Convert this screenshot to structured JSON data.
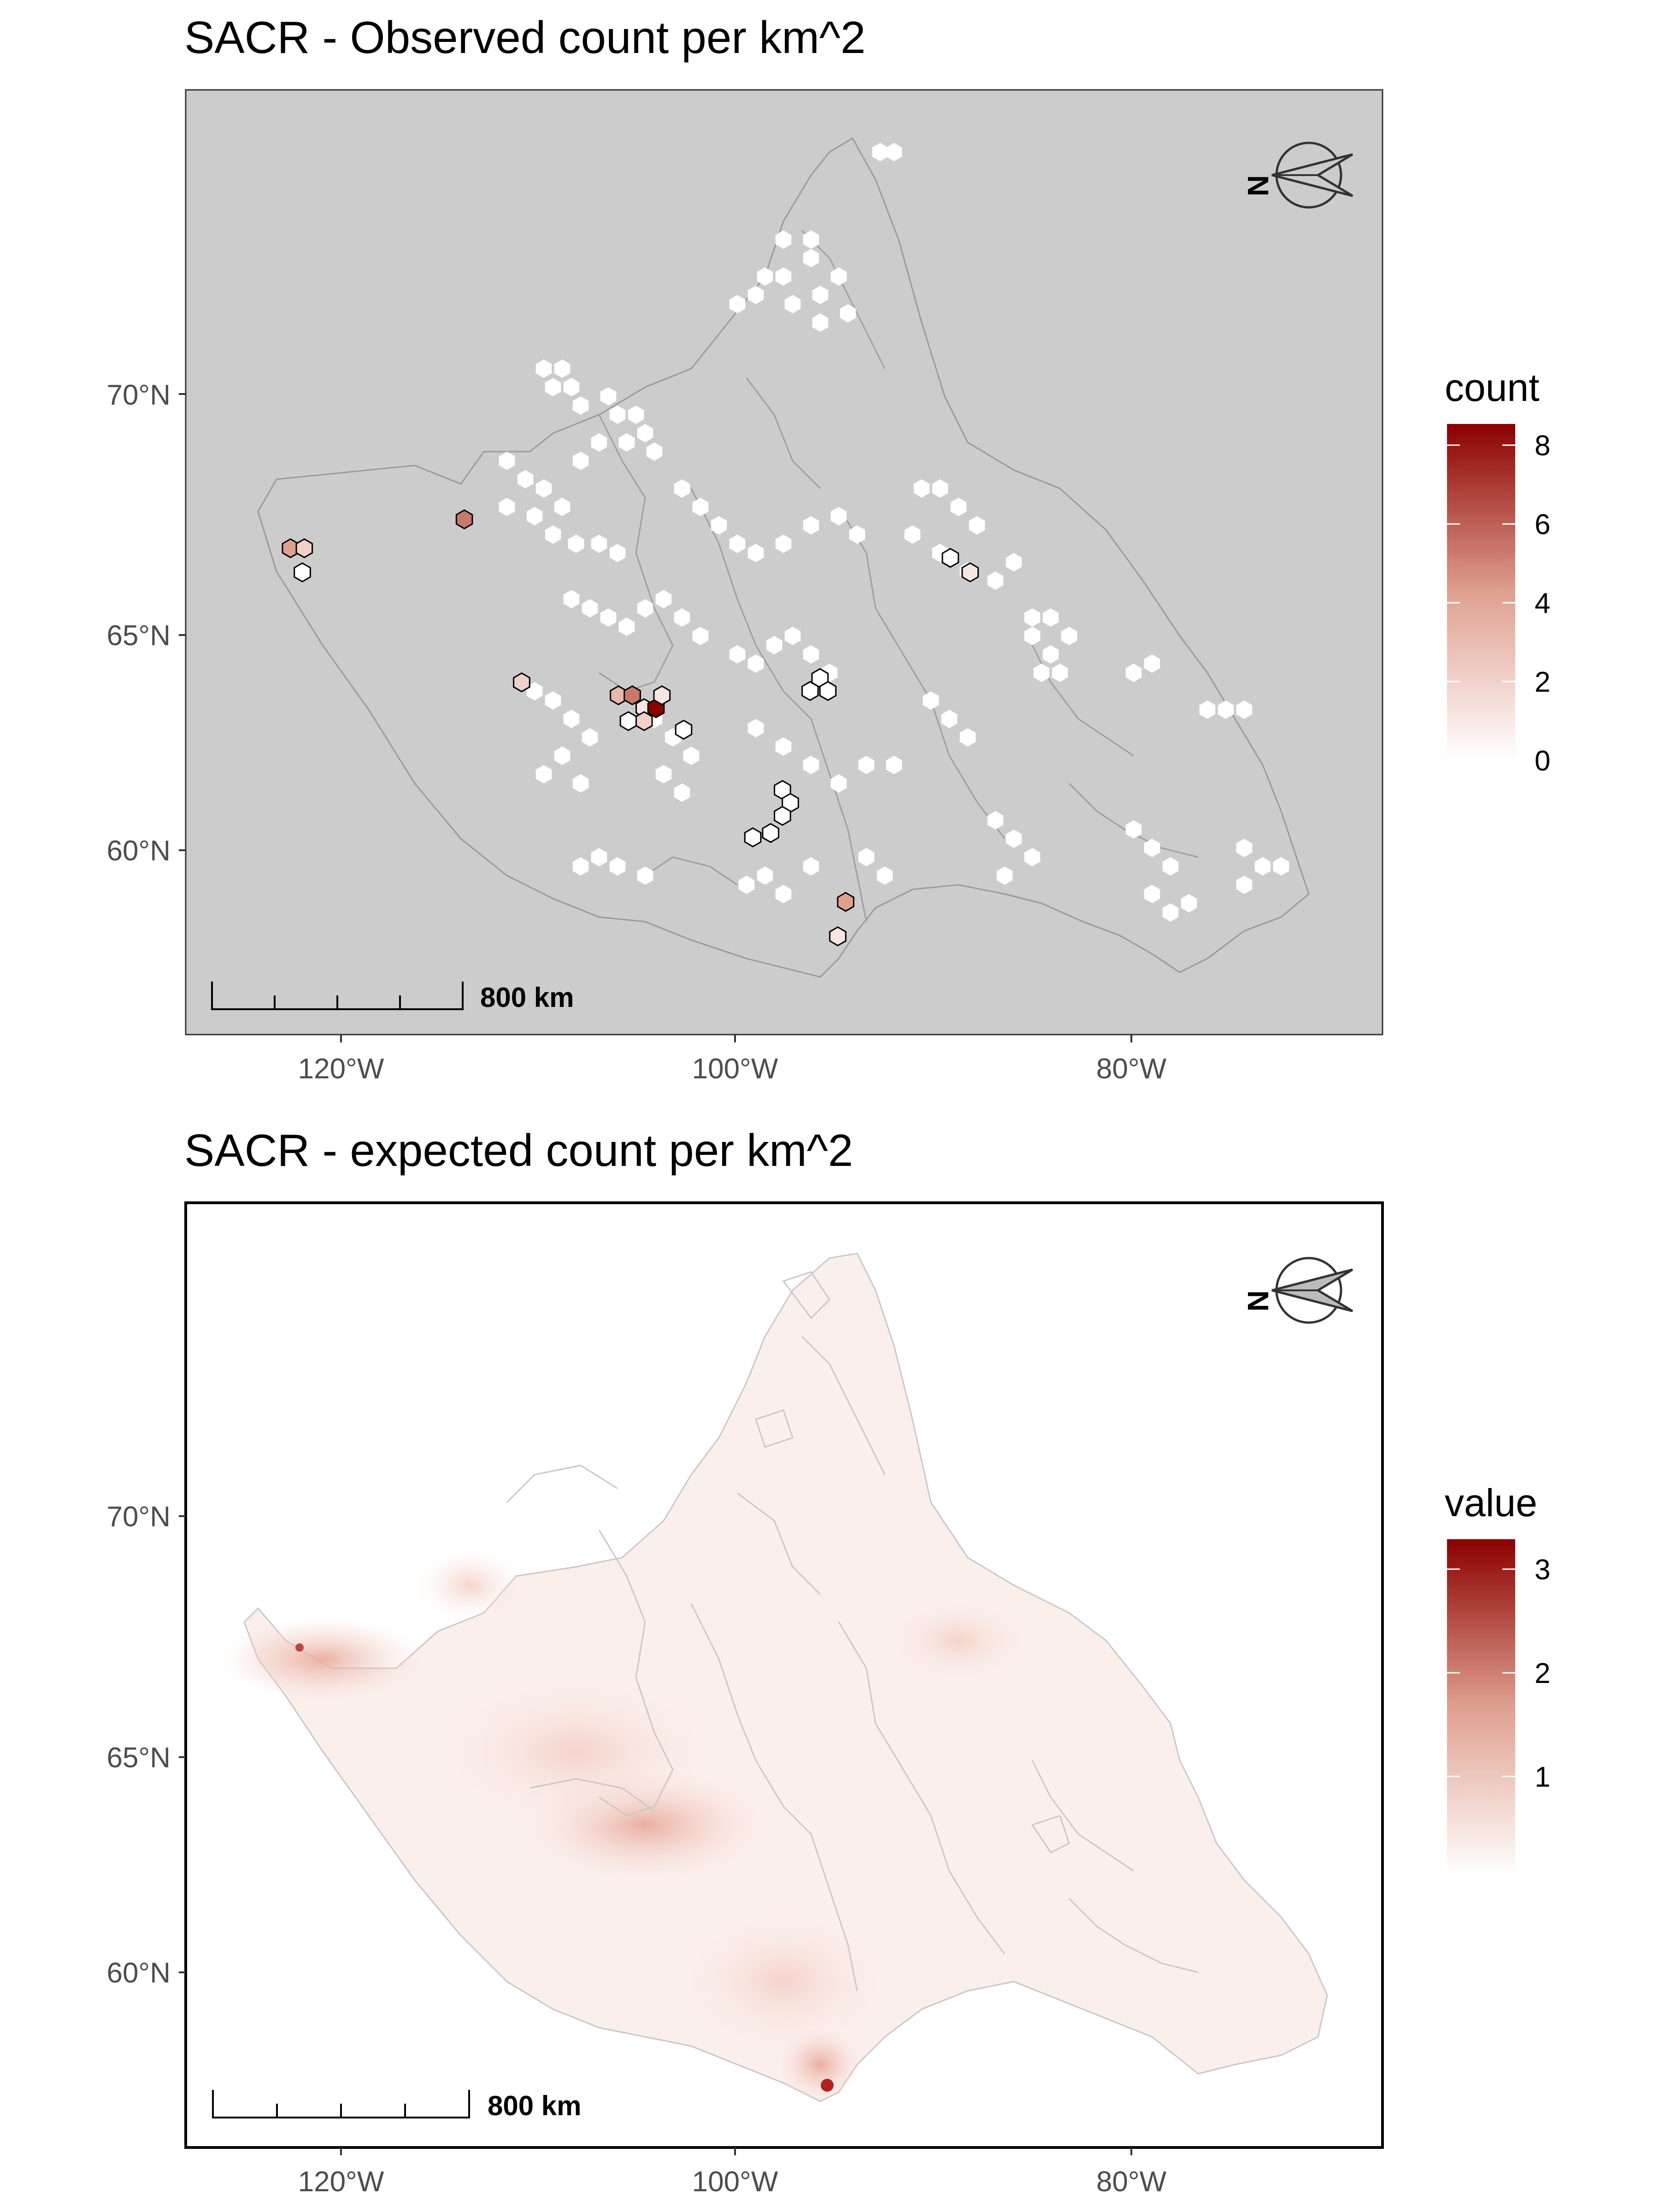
{
  "panels": [
    {
      "id": "observed",
      "title": "SACR - Observed count per km^2",
      "background": "#cccccc",
      "legend": {
        "title": "count",
        "ticks": [
          "8",
          "6",
          "4",
          "2",
          "0"
        ],
        "color_low": "#ffffff",
        "color_high": "#8b0000"
      },
      "y_ticks": [
        "70°N",
        "65°N",
        "60°N"
      ],
      "x_ticks": [
        "120°W",
        "100°W",
        "80°W"
      ],
      "scale_bar_label": "800 km",
      "north_arrow": "N"
    },
    {
      "id": "expected",
      "title": "SACR - expected count per km^2",
      "background": "#ffffff",
      "legend": {
        "title": "value",
        "ticks": [
          "3",
          "2",
          "1"
        ],
        "color_low": "#ffffff",
        "color_high": "#8b0000"
      },
      "y_ticks": [
        "70°N",
        "65°N",
        "60°N"
      ],
      "x_ticks": [
        "120°W",
        "100°W",
        "80°W"
      ],
      "scale_bar_label": "800 km",
      "north_arrow": "N"
    }
  ],
  "map_data": {
    "observed_hexes": [
      {
        "lon": -122.5,
        "lat": 66.8,
        "count": 4
      },
      {
        "lon": -121.8,
        "lat": 66.8,
        "count": 2
      },
      {
        "lon": -121.9,
        "lat": 66.3,
        "count": 0
      },
      {
        "lon": -113.7,
        "lat": 67.4,
        "count": 5
      },
      {
        "lon": -110.8,
        "lat": 63.9,
        "count": 2
      },
      {
        "lon": -105.9,
        "lat": 63.6,
        "count": 3
      },
      {
        "lon": -105.2,
        "lat": 63.6,
        "count": 5
      },
      {
        "lon": -104.6,
        "lat": 63.3,
        "count": 1
      },
      {
        "lon": -104.0,
        "lat": 63.3,
        "count": 8
      },
      {
        "lon": -103.7,
        "lat": 63.6,
        "count": 1
      },
      {
        "lon": -105.4,
        "lat": 63.0,
        "count": 0
      },
      {
        "lon": -104.6,
        "lat": 63.0,
        "count": 2
      },
      {
        "lon": -102.6,
        "lat": 62.8,
        "count": 0
      },
      {
        "lon": -96.2,
        "lat": 63.7,
        "count": 0
      },
      {
        "lon": -95.7,
        "lat": 64.0,
        "count": 0
      },
      {
        "lon": -95.3,
        "lat": 63.7,
        "count": 0
      },
      {
        "lon": -97.6,
        "lat": 61.4,
        "count": 0
      },
      {
        "lon": -97.2,
        "lat": 61.1,
        "count": 0
      },
      {
        "lon": -97.6,
        "lat": 60.8,
        "count": 0
      },
      {
        "lon": -98.2,
        "lat": 60.4,
        "count": 0
      },
      {
        "lon": -99.1,
        "lat": 60.3,
        "count": 0
      },
      {
        "lon": -94.4,
        "lat": 58.8,
        "count": 4
      },
      {
        "lon": -94.8,
        "lat": 58.0,
        "count": 1
      },
      {
        "lon": -89.1,
        "lat": 66.6,
        "count": 0
      },
      {
        "lon": -88.1,
        "lat": 66.3,
        "count": 1
      }
    ]
  }
}
